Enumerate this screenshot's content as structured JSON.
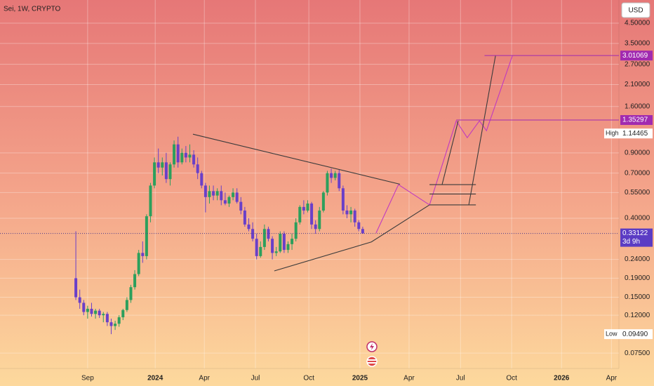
{
  "chart_data": {
    "type": "candlestick",
    "title": "Sei, 1W, CRYPTO",
    "currency": "USD",
    "log_scale": true,
    "grid": true,
    "up_color": "#2c9f5c",
    "down_color": "#6a3fc8",
    "open": [
      0.19,
      0.15,
      0.14,
      0.125,
      0.13,
      0.122,
      0.127,
      0.12,
      0.122,
      0.11,
      0.105,
      0.108,
      0.117,
      0.128,
      0.145,
      0.17,
      0.2,
      0.26,
      0.25,
      0.41,
      0.6,
      0.8,
      0.75,
      0.8,
      0.65,
      0.78,
      1.0,
      0.8,
      0.9,
      0.85,
      0.88,
      0.78,
      0.7,
      0.6,
      0.52,
      0.56,
      0.53,
      0.56,
      0.5,
      0.48,
      0.52,
      0.55,
      0.49,
      0.44,
      0.37,
      0.35,
      0.31,
      0.25,
      0.28,
      0.35,
      0.31,
      0.26,
      0.265,
      0.33,
      0.27,
      0.29,
      0.31,
      0.38,
      0.46,
      0.44,
      0.48,
      0.37,
      0.35,
      0.44,
      0.55,
      0.7,
      0.66,
      0.7,
      0.58,
      0.44,
      0.42,
      0.44,
      0.38,
      0.35
    ],
    "high": [
      0.34,
      0.165,
      0.145,
      0.135,
      0.14,
      0.13,
      0.13,
      0.125,
      0.125,
      0.115,
      0.112,
      0.12,
      0.13,
      0.15,
      0.175,
      0.21,
      0.27,
      0.3,
      0.42,
      0.62,
      0.85,
      0.95,
      0.85,
      0.9,
      0.8,
      1.05,
      1.1,
      0.95,
      0.98,
      1.0,
      0.93,
      0.85,
      0.72,
      0.62,
      0.6,
      0.6,
      0.58,
      0.6,
      0.55,
      0.53,
      0.58,
      0.58,
      0.52,
      0.46,
      0.4,
      0.38,
      0.33,
      0.3,
      0.37,
      0.36,
      0.32,
      0.28,
      0.34,
      0.34,
      0.3,
      0.33,
      0.4,
      0.47,
      0.5,
      0.5,
      0.49,
      0.39,
      0.46,
      0.56,
      0.72,
      0.74,
      0.72,
      0.73,
      0.6,
      0.47,
      0.46,
      0.45,
      0.39,
      0.36
    ],
    "low": [
      0.145,
      0.13,
      0.12,
      0.115,
      0.118,
      0.115,
      0.116,
      0.11,
      0.105,
      0.0949,
      0.1,
      0.104,
      0.113,
      0.125,
      0.14,
      0.165,
      0.195,
      0.23,
      0.24,
      0.38,
      0.58,
      0.7,
      0.68,
      0.62,
      0.6,
      0.75,
      0.75,
      0.78,
      0.8,
      0.8,
      0.75,
      0.65,
      0.58,
      0.43,
      0.48,
      0.5,
      0.5,
      0.47,
      0.47,
      0.46,
      0.5,
      0.48,
      0.42,
      0.36,
      0.34,
      0.3,
      0.24,
      0.245,
      0.27,
      0.3,
      0.24,
      0.25,
      0.26,
      0.26,
      0.26,
      0.27,
      0.3,
      0.37,
      0.42,
      0.43,
      0.35,
      0.33,
      0.34,
      0.43,
      0.53,
      0.62,
      0.64,
      0.56,
      0.42,
      0.4,
      0.38,
      0.36,
      0.34,
      0.33
    ],
    "close": [
      0.15,
      0.14,
      0.125,
      0.13,
      0.122,
      0.127,
      0.12,
      0.122,
      0.11,
      0.105,
      0.108,
      0.117,
      0.128,
      0.145,
      0.17,
      0.2,
      0.26,
      0.25,
      0.41,
      0.6,
      0.8,
      0.75,
      0.8,
      0.65,
      0.78,
      1.0,
      0.8,
      0.9,
      0.85,
      0.88,
      0.78,
      0.7,
      0.6,
      0.52,
      0.56,
      0.53,
      0.56,
      0.5,
      0.48,
      0.52,
      0.55,
      0.49,
      0.44,
      0.37,
      0.35,
      0.31,
      0.25,
      0.28,
      0.35,
      0.31,
      0.26,
      0.265,
      0.33,
      0.27,
      0.29,
      0.31,
      0.38,
      0.46,
      0.44,
      0.48,
      0.37,
      0.35,
      0.44,
      0.55,
      0.7,
      0.66,
      0.7,
      0.58,
      0.44,
      0.42,
      0.44,
      0.38,
      0.35,
      0.33122
    ],
    "countdown": "3d 9h",
    "xlim": [
      -19.3,
      138.2
    ],
    "xticks": [
      {
        "value": 3,
        "label": "Sep"
      },
      {
        "value": 20.2,
        "label": "2024"
      },
      {
        "value": 32.7,
        "label": "Apr"
      },
      {
        "value": 45.7,
        "label": "Jul"
      },
      {
        "value": 59.3,
        "label": "Oct"
      },
      {
        "value": 72.3,
        "label": "2025"
      },
      {
        "value": 84.8,
        "label": "Apr"
      },
      {
        "value": 97.9,
        "label": "Jul"
      },
      {
        "value": 110.9,
        "label": "Oct"
      },
      {
        "value": 123.6,
        "label": "2026"
      },
      {
        "value": 136.3,
        "label": "Apr"
      }
    ],
    "ylim": [
      0.062,
      6.0
    ],
    "yticks": [
      {
        "value": 4.5,
        "label": "4.50000"
      },
      {
        "value": 3.5,
        "label": "3.50000"
      },
      {
        "value": 2.7,
        "label": "2.70000"
      },
      {
        "value": 2.1,
        "label": "2.10000"
      },
      {
        "value": 1.6,
        "label": "1.60000"
      },
      {
        "value": 0.9,
        "label": "0.90000"
      },
      {
        "value": 0.7,
        "label": "0.70000"
      },
      {
        "value": 0.55,
        "label": "0.55000"
      },
      {
        "value": 0.4,
        "label": "0.40000"
      },
      {
        "value": 0.24,
        "label": "0.24000"
      },
      {
        "value": 0.19,
        "label": "0.19000"
      },
      {
        "value": 0.15,
        "label": "0.15000"
      },
      {
        "value": 0.12,
        "label": "0.12000"
      },
      {
        "value": 0.075,
        "label": "0.07500"
      }
    ],
    "high_marker": {
      "label": "High",
      "value": 1.14465
    },
    "low_marker": {
      "label": "Low",
      "value": 0.0949,
      "value_label": "0.09490"
    },
    "price_lines": [
      {
        "value": 3.01069,
        "start": 104,
        "color": "#a12ab0"
      },
      {
        "value": 1.35297,
        "start": 96.8,
        "color": "#a12ab0"
      }
    ],
    "drawings": [
      {
        "color": "#3b3b3b",
        "x": [
          29.8,
          82.5
        ],
        "y": [
          1.135,
          0.61
        ]
      },
      {
        "color": "#3b3b3b",
        "x": [
          50.5,
          75.2,
          90
        ],
        "y": [
          0.208,
          0.298,
          0.472
        ]
      },
      {
        "color": "#c03ac0",
        "x": [
          76.4,
          82.1,
          90,
          96.8,
          99.6,
          102.7,
          104.5,
          111.1
        ],
        "y": [
          0.333,
          0.607,
          0.472,
          1.339,
          1.087,
          1.339,
          1.186,
          3.01
        ]
      },
      {
        "color": "#3b3b3b",
        "x": [
          93.2,
          97.3
        ],
        "y": [
          0.607,
          1.339
        ]
      },
      {
        "color": "#3b3b3b",
        "x": [
          100,
          106.8
        ],
        "y": [
          0.472,
          3.01
        ]
      },
      {
        "color": "#3b3b3b",
        "x": [
          90,
          101.8
        ],
        "y": [
          0.607,
          0.607
        ]
      },
      {
        "color": "#3b3b3b",
        "x": [
          90,
          101.8
        ],
        "y": [
          0.54,
          0.54
        ]
      },
      {
        "color": "#3b3b3b",
        "x": [
          90,
          101.8
        ],
        "y": [
          0.472,
          0.472
        ]
      }
    ]
  }
}
